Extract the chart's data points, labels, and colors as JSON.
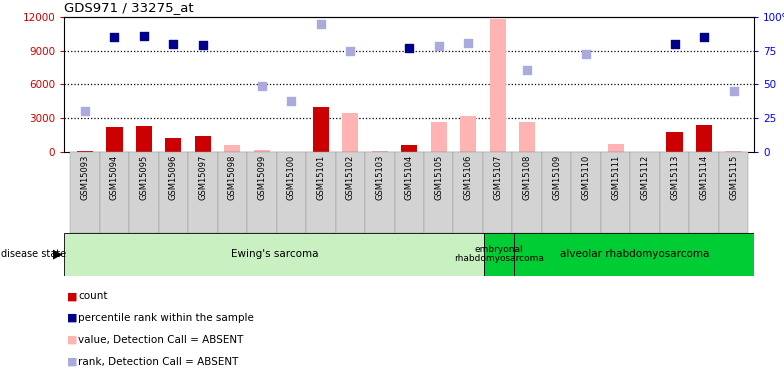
{
  "title": "GDS971 / 33275_at",
  "samples": [
    "GSM15093",
    "GSM15094",
    "GSM15095",
    "GSM15096",
    "GSM15097",
    "GSM15098",
    "GSM15099",
    "GSM15100",
    "GSM15101",
    "GSM15102",
    "GSM15103",
    "GSM15104",
    "GSM15105",
    "GSM15106",
    "GSM15107",
    "GSM15108",
    "GSM15109",
    "GSM15110",
    "GSM15111",
    "GSM15112",
    "GSM15113",
    "GSM15114",
    "GSM15115"
  ],
  "count_present": [
    50,
    2200,
    2300,
    1200,
    1400,
    null,
    null,
    null,
    4000,
    null,
    null,
    600,
    null,
    null,
    null,
    null,
    null,
    null,
    null,
    null,
    1800,
    2400,
    null
  ],
  "count_absent": [
    null,
    null,
    null,
    null,
    null,
    600,
    200,
    null,
    null,
    3500,
    100,
    null,
    2700,
    3200,
    11800,
    2700,
    null,
    null,
    700,
    null,
    null,
    null,
    100
  ],
  "rank_present": [
    null,
    10200,
    10300,
    9600,
    9500,
    null,
    null,
    null,
    null,
    null,
    null,
    9200,
    null,
    null,
    null,
    null,
    null,
    null,
    null,
    null,
    9600,
    10200,
    null
  ],
  "rank_absent": [
    3600,
    null,
    null,
    null,
    null,
    null,
    5900,
    4500,
    11400,
    9000,
    null,
    null,
    9400,
    9700,
    null,
    7300,
    null,
    8700,
    null,
    null,
    null,
    null,
    5400
  ],
  "yticks_left": [
    0,
    3000,
    6000,
    9000,
    12000
  ],
  "ytick_labels_left": [
    "0",
    "3000",
    "6000",
    "9000",
    "12000"
  ],
  "ytick_labels_right": [
    "0",
    "25",
    "50",
    "75",
    "100%"
  ],
  "count_color": "#cc0000",
  "count_absent_color": "#ffb3b3",
  "rank_present_color": "#00008b",
  "rank_absent_color": "#aaaadd",
  "bar_width": 0.55,
  "disease_groups": [
    {
      "label": "Ewing's sarcoma",
      "start": 0,
      "end": 14,
      "color": "#c8f0c0"
    },
    {
      "label": "embryonal\nrhabdomyosarcoma",
      "start": 14,
      "end": 15,
      "color": "#00cc33"
    },
    {
      "label": "alveolar rhabdomyosarcoma",
      "start": 15,
      "end": 23,
      "color": "#00cc33"
    }
  ],
  "legend_items": [
    {
      "color": "#cc0000",
      "label": "count"
    },
    {
      "color": "#00008b",
      "label": "percentile rank within the sample"
    },
    {
      "color": "#ffb3b3",
      "label": "value, Detection Call = ABSENT"
    },
    {
      "color": "#aaaadd",
      "label": "rank, Detection Call = ABSENT"
    }
  ]
}
